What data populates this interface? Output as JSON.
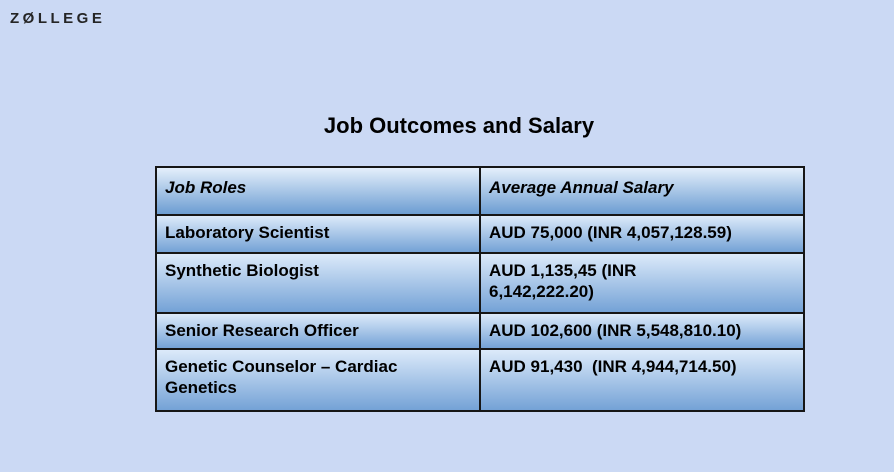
{
  "page": {
    "background_color": "#cbd9f4"
  },
  "logo": {
    "text": "ZØLLEGE",
    "color": "#252525"
  },
  "title": "Job Outcomes and Salary",
  "table": {
    "headers": [
      "Job Roles",
      "Average Annual Salary"
    ],
    "rows": [
      {
        "role": "Laboratory Scientist",
        "salary": "AUD 75,000 (INR 4,057,128.59)"
      },
      {
        "role": "Synthetic Biologist",
        "salary": "AUD 1,135,45 (INR\n6,142,222.20)"
      },
      {
        "role": "Senior Research Officer",
        "salary": "AUD 102,600 (INR 5,548,810.10)"
      },
      {
        "role": "Genetic Counselor – Cardiac\nGenetics",
        "salary": "AUD 91,430  (INR 4,944,714.50)"
      }
    ],
    "style": {
      "cell_gradient_top": "#dceafa",
      "cell_gradient_bottom": "#74a2d6",
      "header_gradient_top": "#e4effb",
      "header_gradient_bottom": "#6c9dd2",
      "border_color": "#161616"
    }
  },
  "chart_data": {
    "type": "table",
    "title": "Job Outcomes and Salary",
    "columns": [
      "Job Roles",
      "Average Annual Salary"
    ],
    "rows": [
      [
        "Laboratory Scientist",
        "AUD 75,000 (INR 4,057,128.59)"
      ],
      [
        "Synthetic Biologist",
        "AUD 1,135,45 (INR 6,142,222.20)"
      ],
      [
        "Senior Research Officer",
        "AUD 102,600 (INR 5,548,810.10)"
      ],
      [
        "Genetic Counselor – Cardiac Genetics",
        "AUD 91,430  (INR 4,944,714.50)"
      ]
    ]
  }
}
